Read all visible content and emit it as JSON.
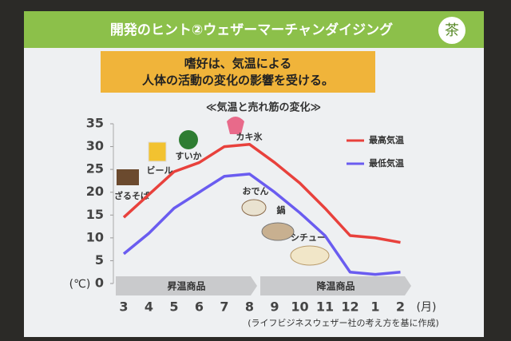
{
  "header": {
    "title": "開発のヒント②ウェザーマーチャンダイジング",
    "logo": "茶"
  },
  "message": [
    "嗜好は、気温による",
    "人体の活動の変化の影響を受ける。"
  ],
  "chart_data": {
    "type": "line",
    "title": "≪気温と売れ筋の変化≫",
    "categories": [
      "3",
      "4",
      "5",
      "6",
      "7",
      "8",
      "9",
      "10",
      "11",
      "12",
      "1",
      "2"
    ],
    "series": [
      {
        "name": "最高気温",
        "color": "#e8413c",
        "values": [
          14.5,
          19.5,
          24.5,
          26.5,
          30,
          30.5,
          26.5,
          22,
          16.5,
          10.5,
          10,
          9
        ]
      },
      {
        "name": "最低気温",
        "color": "#6a5cf0",
        "values": [
          6.5,
          11,
          16.5,
          20,
          23.5,
          24,
          20,
          15.5,
          10.5,
          2.5,
          2,
          2.5
        ]
      }
    ],
    "ylim": [
      0,
      35
    ],
    "yticks": [
      0,
      5,
      10,
      15,
      20,
      25,
      30,
      35
    ],
    "ylabel": "(℃)",
    "xlabel": "(月)",
    "legend": "upper right",
    "grid": false,
    "annotations": [
      "ざるそば",
      "ビール",
      "すいか",
      "カキ氷",
      "おでん",
      "鍋",
      "シチュー"
    ],
    "bands": [
      "昇温商品",
      "降温商品"
    ],
    "source": "(ライフビジネスウェザー社の考え方を基に作成)"
  }
}
